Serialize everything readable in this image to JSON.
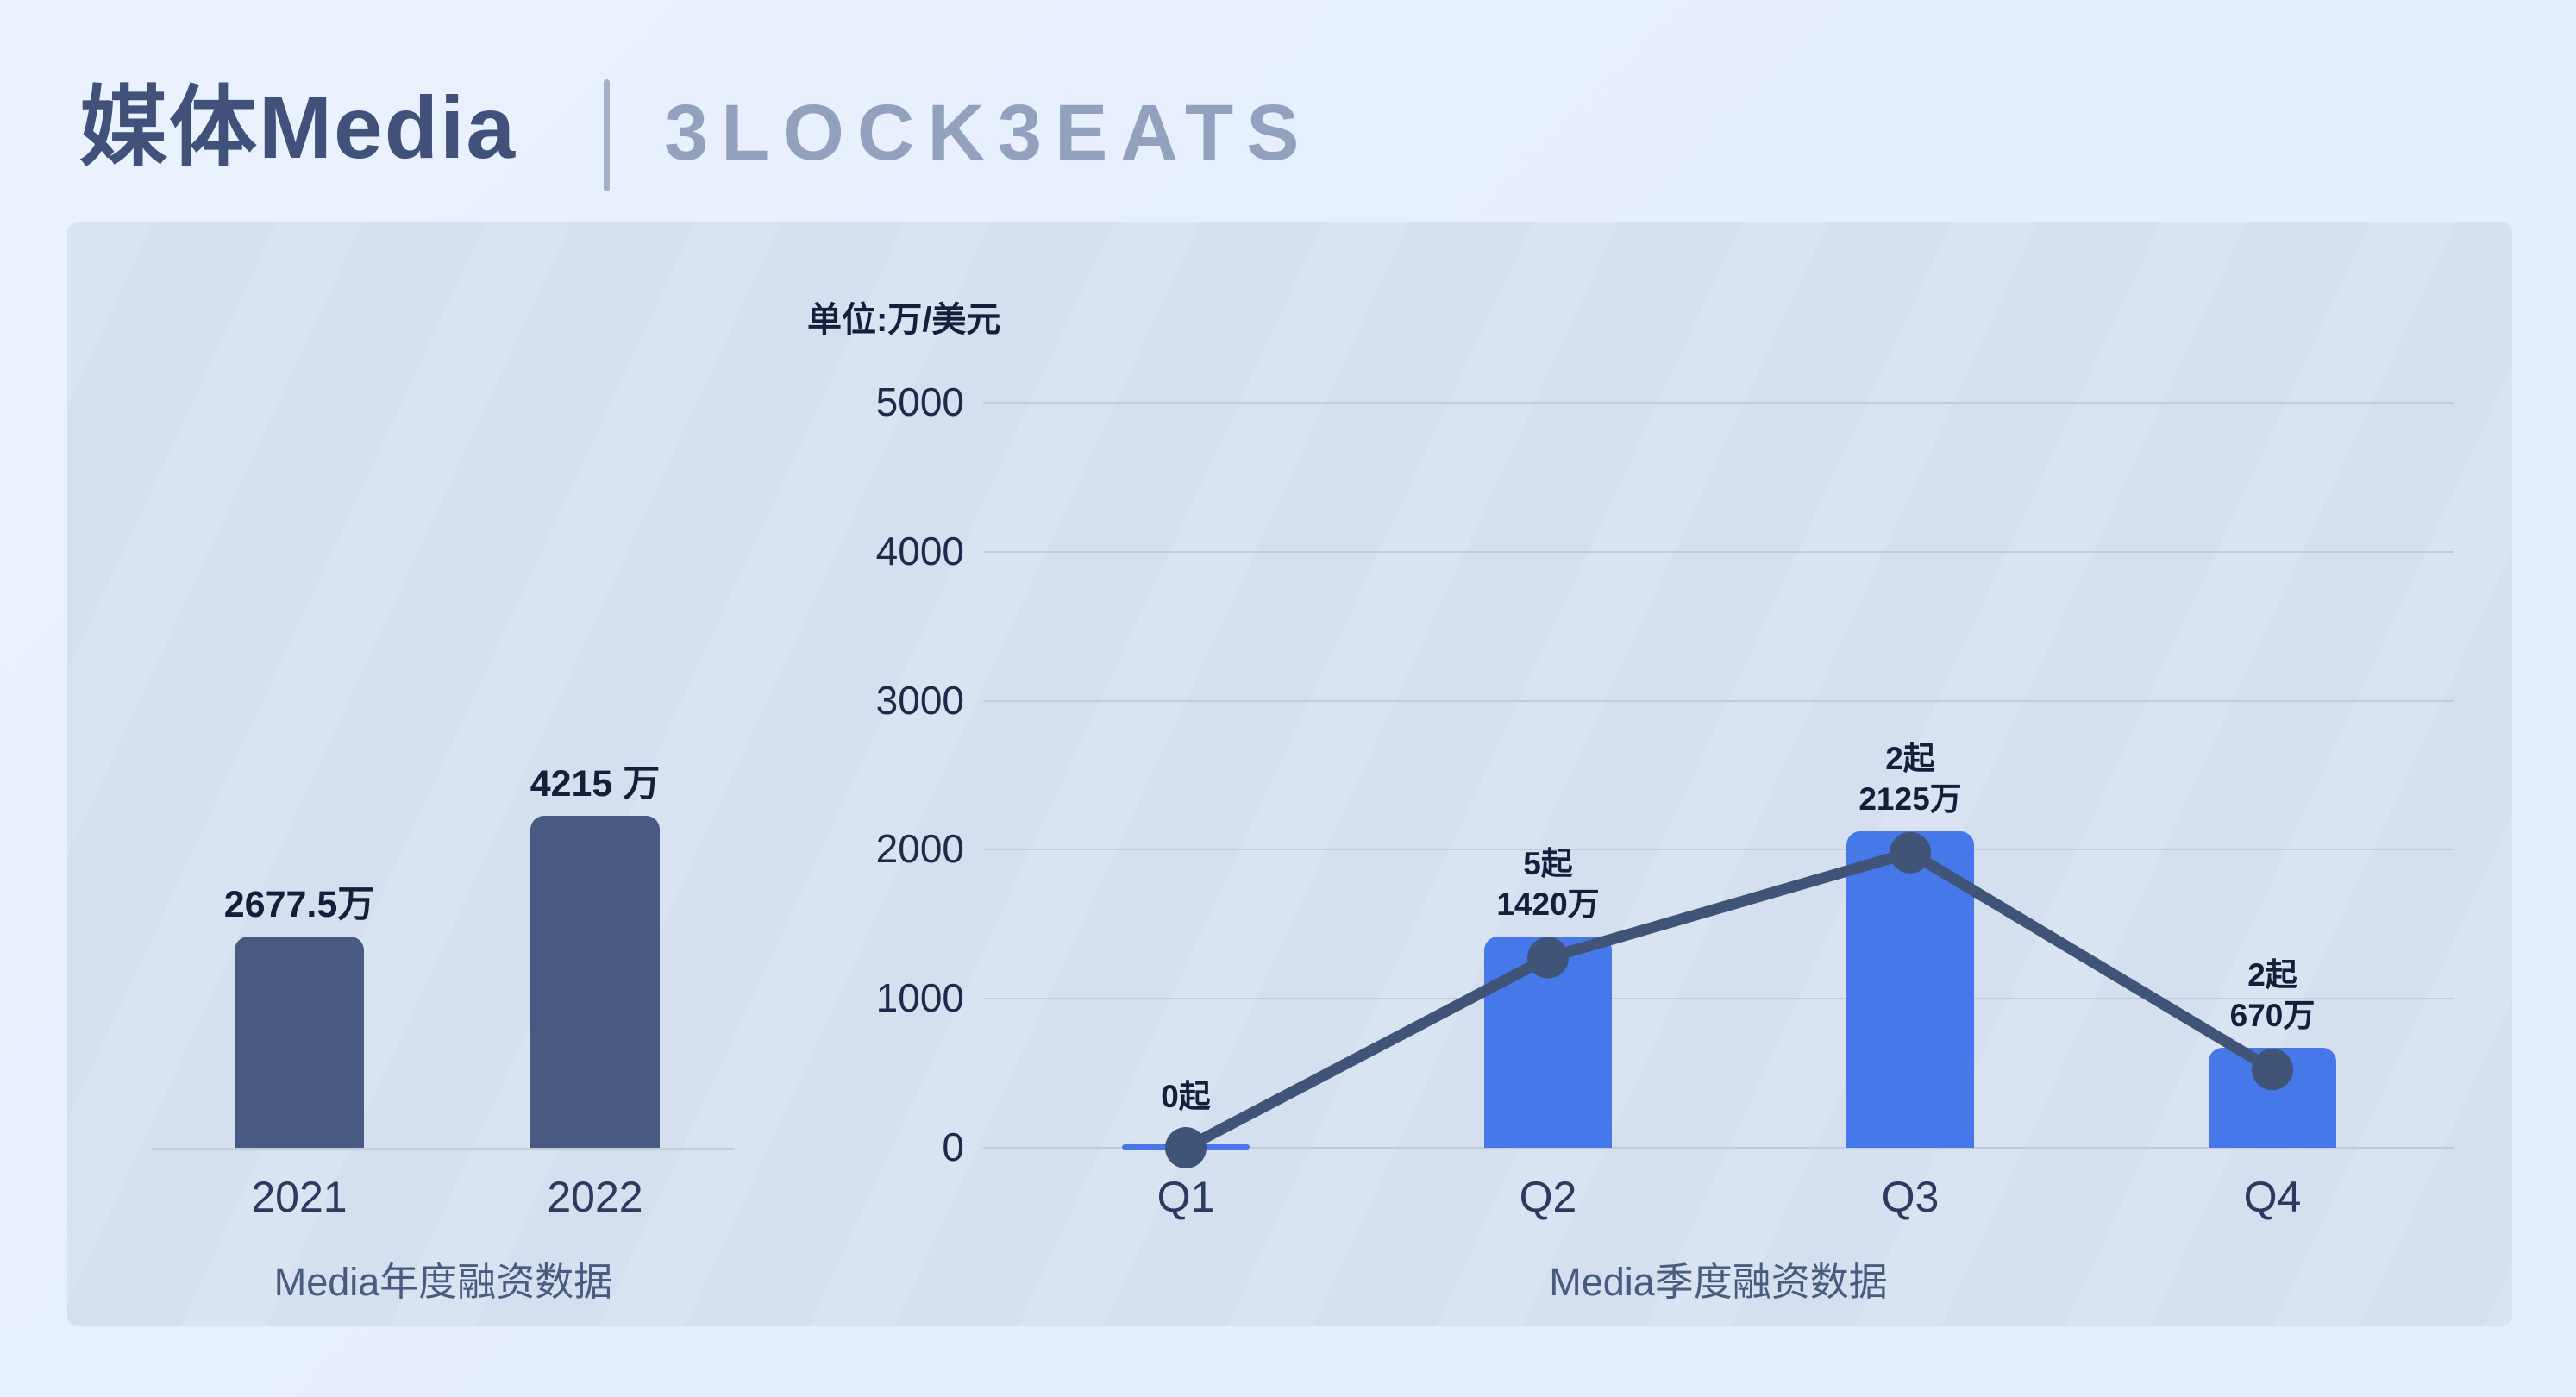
{
  "header": {
    "title": "媒体Media",
    "logo_brand": "BLOCKBEATS",
    "logo_display": "3LOCK3EATS"
  },
  "colors": {
    "page_bg": "#e5eefc",
    "card_bg": "#d8e2f1",
    "title_text": "#42517a",
    "divider": "#a3b0c8",
    "logo_text": "#93a1bf",
    "grid_line": "#c2ccd9",
    "axis_tick_text": "#1e2a4c",
    "x_tick_text": "#2b3a5e",
    "data_label_text": "#141f3c",
    "caption_text": "#4a5b80",
    "annual_bar": "#485a81",
    "quarterly_bar": "#4678e9",
    "trend_line": "#405478"
  },
  "chart_data": [
    {
      "type": "bar",
      "title": "Media年度融资数据",
      "categories": [
        "2021",
        "2022"
      ],
      "values": [
        2677.5,
        4215
      ],
      "value_labels": [
        "2677.5万",
        "4215 万"
      ],
      "ylim": [
        0,
        4700
      ],
      "grid": false,
      "legend": "none"
    },
    {
      "type": "bar+line",
      "title": "Media季度融资数据",
      "ylabel": "单位:万/美元",
      "categories": [
        "Q1",
        "Q2",
        "Q3",
        "Q4"
      ],
      "values": [
        0,
        1420,
        2125,
        670
      ],
      "deal_counts": [
        0,
        5,
        2,
        2
      ],
      "point_labels": [
        [
          "0起"
        ],
        [
          "5起",
          "1420万"
        ],
        [
          "2起",
          "2125万"
        ],
        [
          "2起",
          "670万"
        ]
      ],
      "ylim": [
        0,
        5000
      ],
      "yticks": [
        5000,
        4000,
        3000,
        2000,
        1000,
        0
      ],
      "grid": true,
      "legend": "none"
    }
  ]
}
